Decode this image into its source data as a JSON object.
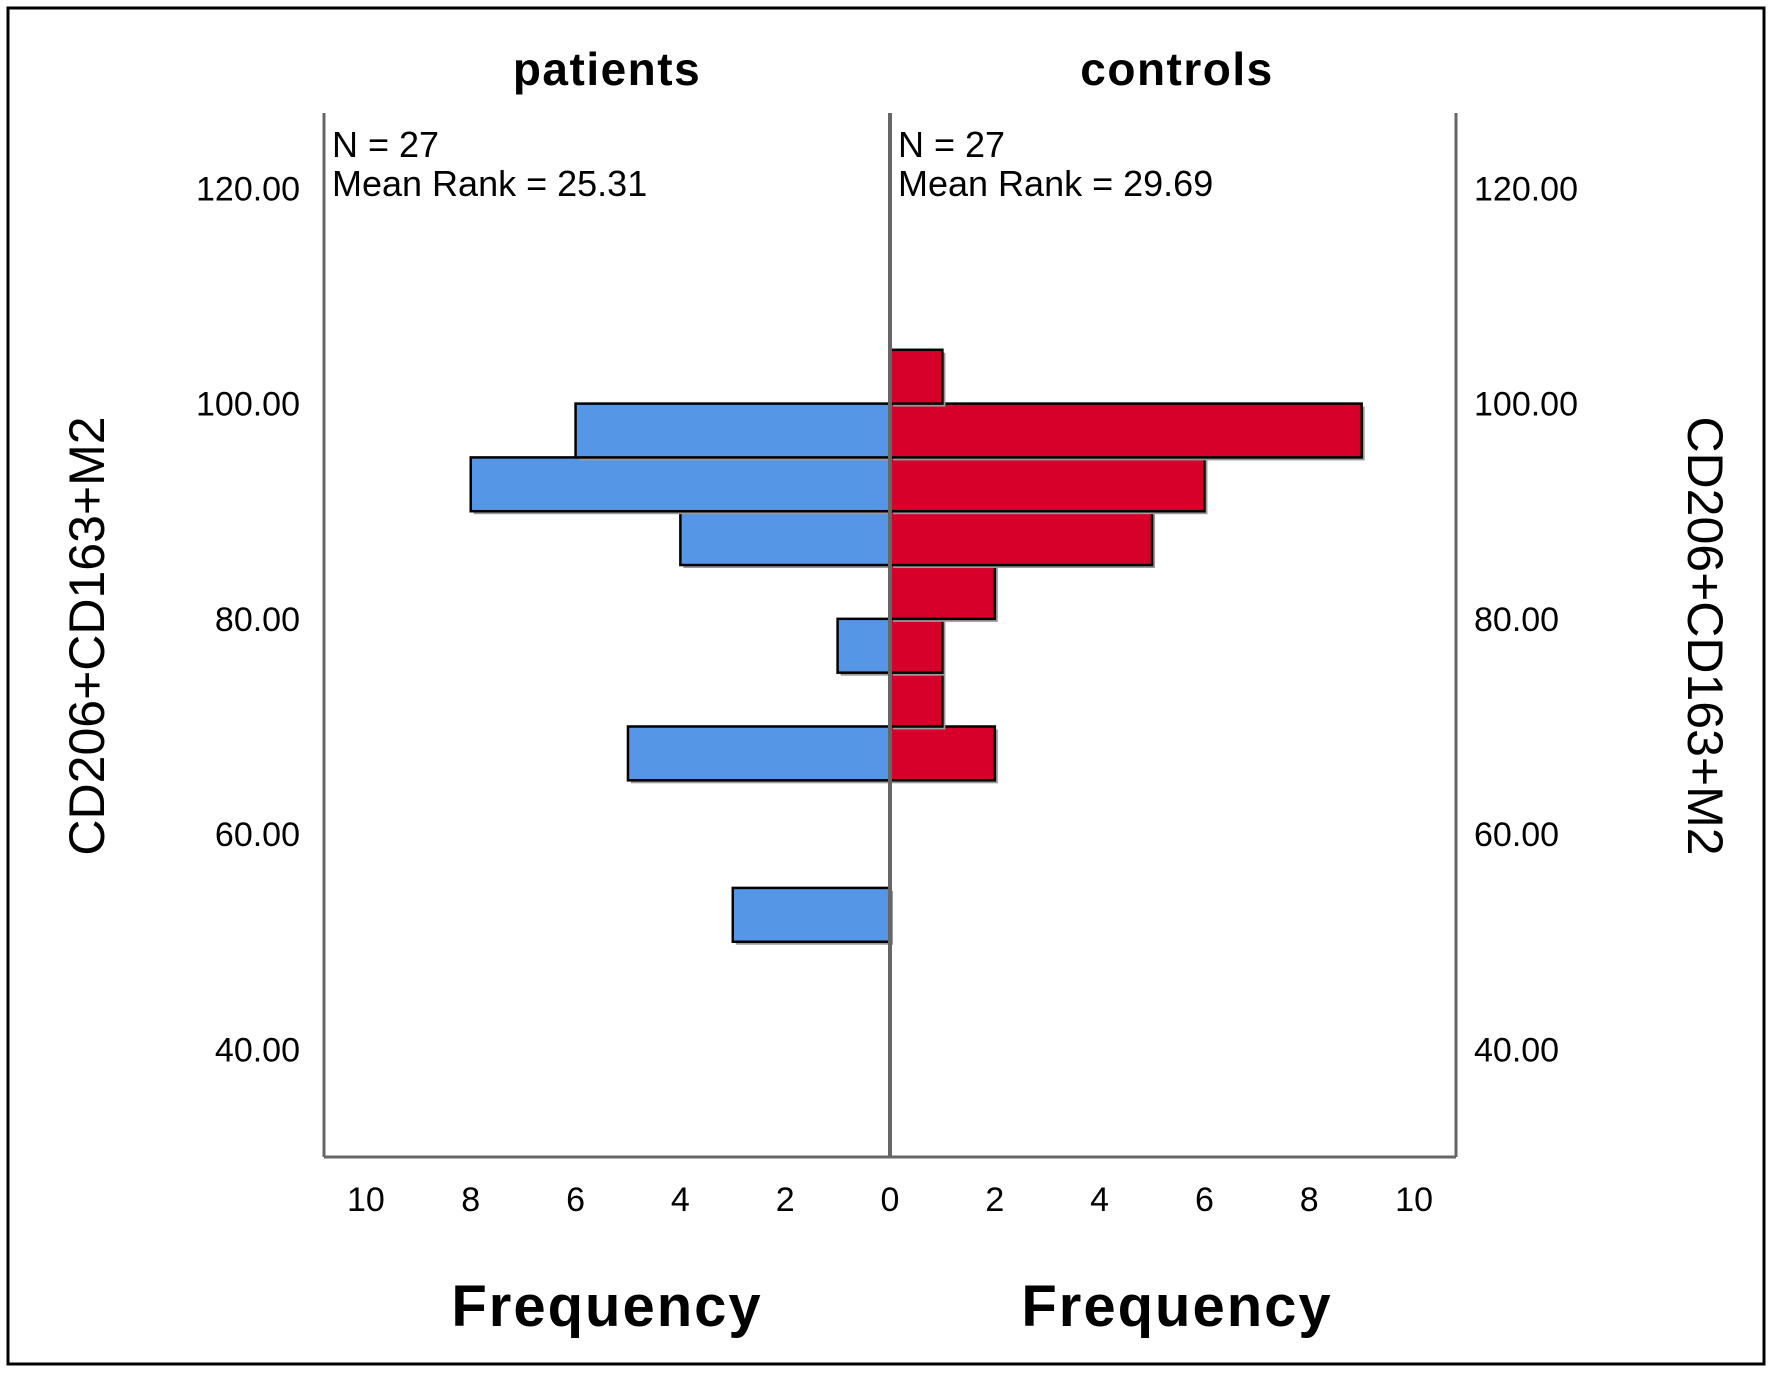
{
  "chart_data": {
    "type": "bar",
    "subtype": "population-pyramid-histogram",
    "orientation": "horizontal",
    "y_label": "CD206+CD163+M2",
    "x_label": "Frequency",
    "ylim": [
      30,
      127
    ],
    "xlim": [
      0,
      10.8
    ],
    "y_ticks": [
      "40.00",
      "60.00",
      "80.00",
      "100.00",
      "120.00"
    ],
    "x_ticks": [
      "0",
      "2",
      "4",
      "6",
      "8",
      "10"
    ],
    "bin_width": 5,
    "grid": false,
    "panels": [
      {
        "title": "patients",
        "side": "left",
        "color": "#5596e6",
        "n_text": "N = 27",
        "mean_rank_text": "Mean Rank = 25.31",
        "bins": [
          {
            "from": 50,
            "to": 55,
            "count": 3
          },
          {
            "from": 65,
            "to": 70,
            "count": 5
          },
          {
            "from": 75,
            "to": 80,
            "count": 1
          },
          {
            "from": 85,
            "to": 90,
            "count": 4
          },
          {
            "from": 90,
            "to": 95,
            "count": 8
          },
          {
            "from": 95,
            "to": 100,
            "count": 6
          }
        ]
      },
      {
        "title": "controls",
        "side": "right",
        "color": "#d6002a",
        "n_text": "N = 27",
        "mean_rank_text": "Mean Rank = 29.69",
        "bins": [
          {
            "from": 65,
            "to": 70,
            "count": 2
          },
          {
            "from": 70,
            "to": 75,
            "count": 1
          },
          {
            "from": 75,
            "to": 80,
            "count": 1
          },
          {
            "from": 80,
            "to": 85,
            "count": 2
          },
          {
            "from": 85,
            "to": 90,
            "count": 5
          },
          {
            "from": 90,
            "to": 95,
            "count": 6
          },
          {
            "from": 95,
            "to": 100,
            "count": 9
          },
          {
            "from": 100,
            "to": 105,
            "count": 1
          }
        ]
      }
    ]
  }
}
